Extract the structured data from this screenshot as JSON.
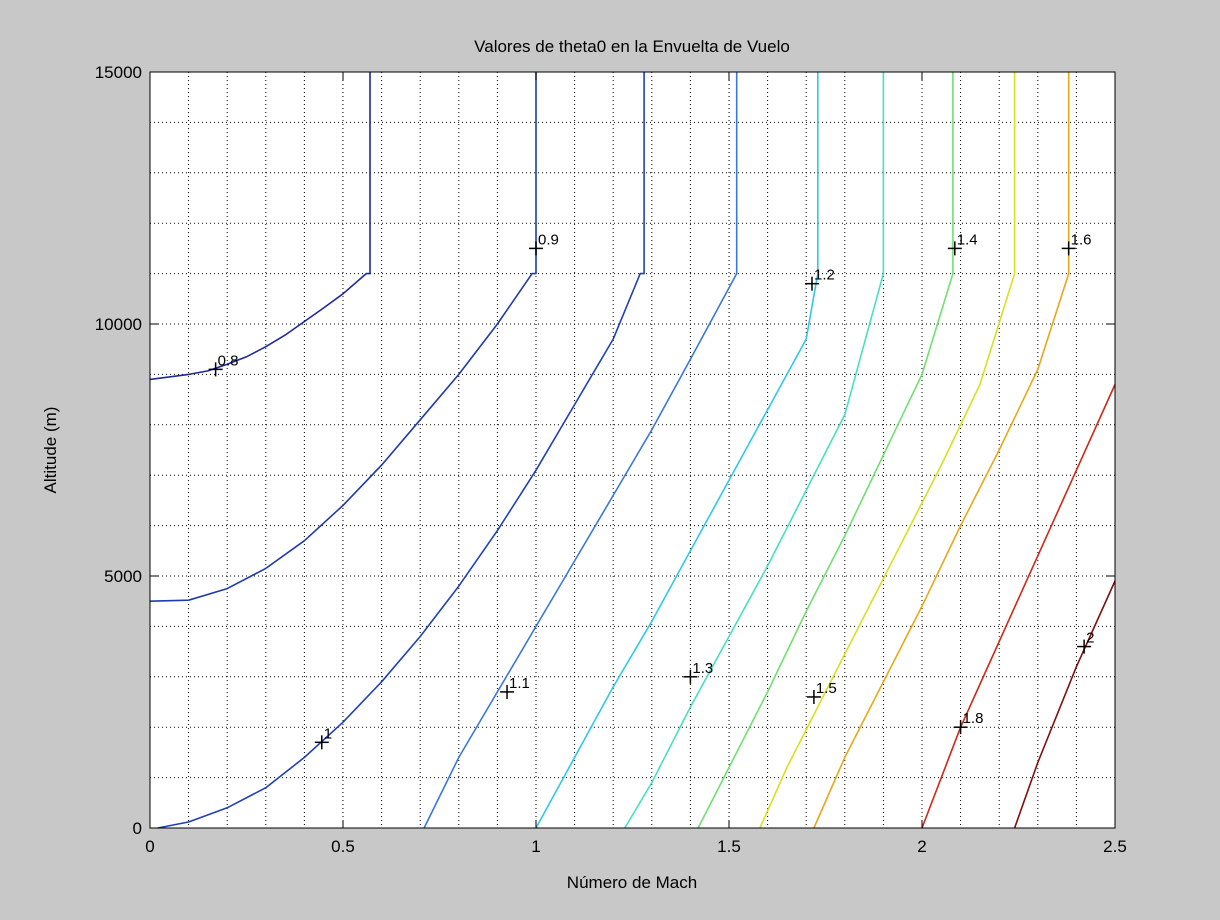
{
  "figure": {
    "background": "#c8c8c8",
    "axes_background": "#ffffff"
  },
  "chart_data": {
    "type": "line",
    "subtype": "contour",
    "title": "Valores de theta0 en la Envuelta de Vuelo",
    "xlabel": "Número de Mach",
    "ylabel": "Altitude (m)",
    "xlim": [
      0,
      2.5
    ],
    "ylim": [
      0,
      15000
    ],
    "grid": true,
    "x_ticks": [
      0,
      0.5,
      1,
      1.5,
      2,
      2.5
    ],
    "x_tick_labels": [
      "0",
      "0.5",
      "1",
      "1.5",
      "2",
      "2.5"
    ],
    "y_ticks": [
      0,
      5000,
      10000,
      15000
    ],
    "y_tick_labels": [
      "0",
      "5000",
      "10000",
      "15000"
    ],
    "series": [
      {
        "level": "0.8",
        "color": "#1f2a9a",
        "x": [
          0,
          0.05,
          0.1,
          0.15,
          0.2,
          0.25,
          0.3,
          0.35,
          0.4,
          0.45,
          0.5,
          0.56,
          0.57,
          0.57
        ],
        "y": [
          8900,
          8950,
          9000,
          9070,
          9200,
          9350,
          9550,
          9780,
          10050,
          10320,
          10600,
          11000,
          11000,
          15000
        ],
        "label": {
          "text": "0.8",
          "x": 0.17,
          "y": 9100
        }
      },
      {
        "level": "0.9",
        "color": "#1f3aaa",
        "x": [
          0,
          0.1,
          0.2,
          0.3,
          0.4,
          0.5,
          0.6,
          0.7,
          0.8,
          0.9,
          0.99,
          1.0,
          1.0
        ],
        "y": [
          4500,
          4520,
          4750,
          5150,
          5700,
          6400,
          7200,
          8100,
          9000,
          10000,
          11000,
          11000,
          15000
        ],
        "label": {
          "text": "0.9",
          "x": 1.0,
          "y": 11500
        }
      },
      {
        "level": "1",
        "color": "#2040b8",
        "x": [
          0.02,
          0.1,
          0.2,
          0.3,
          0.4,
          0.5,
          0.6,
          0.7,
          0.8,
          0.9,
          1.0,
          1.1,
          1.2,
          1.27,
          1.28,
          1.28
        ],
        "y": [
          0,
          120,
          400,
          800,
          1400,
          2100,
          2900,
          3800,
          4800,
          5900,
          7100,
          8400,
          9700,
          11000,
          11000,
          15000
        ],
        "label": {
          "text": "1",
          "x": 0.445,
          "y": 1700
        }
      },
      {
        "level": "1.1",
        "color": "#3a78d8",
        "x": [
          0.71,
          0.8,
          0.9,
          1.0,
          1.1,
          1.2,
          1.3,
          1.4,
          1.52,
          1.52
        ],
        "y": [
          0,
          1400,
          2700,
          4000,
          5300,
          6600,
          7900,
          9300,
          11000,
          15000
        ],
        "label": {
          "text": "1.1",
          "x": 0.925,
          "y": 2700
        }
      },
      {
        "level": "1.2",
        "color": "#30c8e8",
        "x": [
          1.0,
          1.1,
          1.2,
          1.3,
          1.4,
          1.5,
          1.6,
          1.7,
          1.73,
          1.73
        ],
        "y": [
          0,
          1400,
          2800,
          4100,
          5500,
          6900,
          8300,
          9700,
          11000,
          15000
        ],
        "label": {
          "text": "1.2",
          "x": 1.715,
          "y": 10800
        }
      },
      {
        "level": "1.3",
        "color": "#48e0c0",
        "x": [
          1.23,
          1.3,
          1.4,
          1.5,
          1.6,
          1.7,
          1.8,
          1.9,
          1.9
        ],
        "y": [
          0,
          900,
          2400,
          3800,
          5200,
          6700,
          8200,
          11000,
          15000
        ],
        "label": {
          "text": "1.3",
          "x": 1.4,
          "y": 3000
        }
      },
      {
        "level": "1.4",
        "color": "#70e070",
        "x": [
          1.42,
          1.5,
          1.6,
          1.7,
          1.8,
          1.9,
          2.0,
          2.08,
          2.08
        ],
        "y": [
          0,
          1200,
          2700,
          4300,
          5800,
          7400,
          9000,
          11000,
          15000
        ],
        "label": {
          "text": "1.4",
          "x": 2.085,
          "y": 11500
        }
      },
      {
        "level": "1.5",
        "color": "#d8e020",
        "x": [
          1.58,
          1.65,
          1.75,
          1.85,
          1.95,
          2.05,
          2.15,
          2.24,
          2.24
        ],
        "y": [
          0,
          1200,
          2700,
          4200,
          5700,
          7200,
          8800,
          11000,
          15000
        ],
        "label": {
          "text": "1.5",
          "x": 1.72,
          "y": 2600
        }
      },
      {
        "level": "1.6",
        "color": "#e8a818",
        "x": [
          1.72,
          1.8,
          1.9,
          2.0,
          2.1,
          2.2,
          2.3,
          2.38,
          2.38
        ],
        "y": [
          0,
          1400,
          2900,
          4400,
          6000,
          7500,
          9100,
          11000,
          15000
        ],
        "label": {
          "text": "1.6",
          "x": 2.38,
          "y": 11500
        }
      },
      {
        "level": "1.8",
        "color": "#d02818",
        "x": [
          2.0,
          2.1,
          2.2,
          2.3,
          2.4,
          2.5
        ],
        "y": [
          0,
          2000,
          3700,
          5400,
          7100,
          8800
        ],
        "label": {
          "text": "1.8",
          "x": 2.1,
          "y": 2000
        }
      },
      {
        "level": "2",
        "color": "#801010",
        "x": [
          2.24,
          2.3,
          2.4,
          2.5
        ],
        "y": [
          0,
          1300,
          3200,
          4900
        ],
        "label": {
          "text": "2",
          "x": 2.42,
          "y": 3600
        }
      }
    ]
  }
}
